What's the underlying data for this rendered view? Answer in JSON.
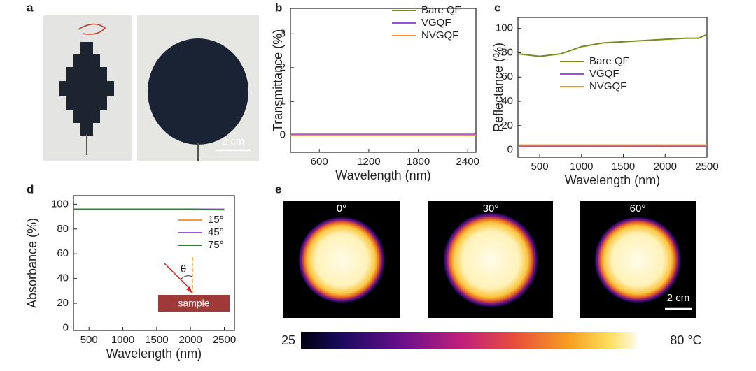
{
  "panel_labels": [
    "a",
    "b",
    "c",
    "d",
    "e"
  ],
  "panel_a": {
    "scale_bar": "2 cm"
  },
  "chart_data": [
    {
      "type": "line",
      "y_label": "Transmittance (%)",
      "x_label": "Wavelength (nm)",
      "x": [
        250,
        500,
        1000,
        1500,
        2000,
        2500
      ],
      "series": [
        {
          "name": "Bare QF",
          "color": "#7a8a1e",
          "values": [
            0.02,
            0.02,
            0.02,
            0.02,
            0.02,
            0.02
          ]
        },
        {
          "name": "VGQF",
          "color": "#9b4fe0",
          "values": [
            0.03,
            0.03,
            0.03,
            0.03,
            0.03,
            0.03
          ]
        },
        {
          "name": "NVGQF",
          "color": "#f5902a",
          "values": [
            0.0,
            0.0,
            0.0,
            0.0,
            0.0,
            0.0
          ]
        }
      ],
      "xlim": [
        250,
        2500
      ],
      "xticks": [
        600,
        1200,
        1800,
        2400
      ],
      "ylim": [
        -0.5,
        3.75
      ],
      "yticks": [
        0,
        1,
        2,
        3
      ],
      "legend": "upper right",
      "grid": false
    },
    {
      "type": "line",
      "y_label": "Reflectance (%)",
      "x_label": "Wavelength (nm)",
      "x": [
        250,
        500,
        750,
        1000,
        1250,
        1500,
        1750,
        2000,
        2250,
        2400,
        2500
      ],
      "series": [
        {
          "name": "Bare QF",
          "color": "#7a8a1e",
          "values": [
            79,
            77,
            79,
            85,
            88,
            89,
            90,
            91,
            92,
            92,
            95
          ]
        },
        {
          "name": "VGQF",
          "color": "#9b4fe0",
          "values": [
            3,
            3,
            3,
            3,
            3,
            3,
            3,
            3,
            3,
            3,
            3
          ]
        },
        {
          "name": "NVGQF",
          "color": "#f5902a",
          "values": [
            4,
            4,
            4,
            4,
            4,
            4,
            4,
            4,
            4,
            4,
            4
          ]
        }
      ],
      "xlim": [
        240,
        2500
      ],
      "xticks": [
        500,
        1000,
        1500,
        2000,
        2500
      ],
      "ylim": [
        -6,
        109
      ],
      "yticks": [
        0,
        20,
        40,
        60,
        80,
        100
      ],
      "legend": "center right",
      "grid": false
    },
    {
      "type": "line",
      "y_label": "Absorbance (%)",
      "x_label": "Wavelength (nm)",
      "x": [
        270,
        500,
        1000,
        1500,
        2000,
        2500
      ],
      "series": [
        {
          "name": "15°",
          "color": "#f39a3c",
          "values": [
            96,
            96,
            96,
            96,
            96,
            96
          ]
        },
        {
          "name": "45°",
          "color": "#9a5ce8",
          "values": [
            96,
            96,
            96,
            96,
            96,
            96
          ]
        },
        {
          "name": "75°",
          "color": "#2e7d32",
          "values": [
            96,
            96,
            96,
            96,
            96,
            95.5
          ]
        }
      ],
      "xlim": [
        270,
        2650
      ],
      "xticks": [
        500,
        1000,
        1500,
        2000,
        2500
      ],
      "ylim": [
        -2,
        107
      ],
      "yticks": [
        0,
        20,
        40,
        60,
        80,
        100
      ],
      "legend": "center right",
      "grid": false,
      "inset": {
        "angle": "θ",
        "sample": "sample"
      }
    }
  ],
  "panel_e": {
    "angles": [
      "0°",
      "30°",
      "60°"
    ],
    "scale_bar": "2 cm",
    "colorbar_ticks": [
      25,
      {
        "value": 80,
        "label": "80 °C"
      }
    ]
  }
}
